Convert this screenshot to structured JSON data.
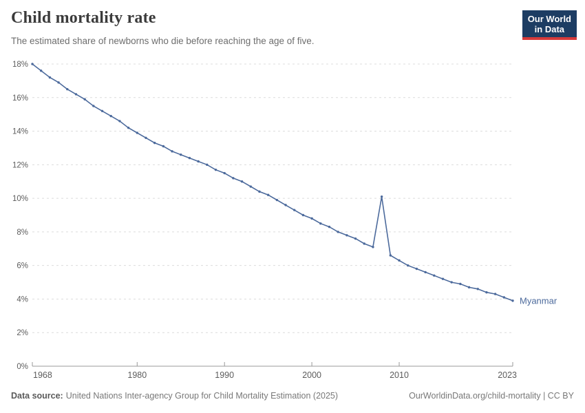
{
  "header": {
    "title": "Child mortality rate",
    "subtitle": "The estimated share of newborns who die before reaching the age of five."
  },
  "logo": {
    "line1": "Our World",
    "line2": "in Data",
    "bg_color": "#1d3d63",
    "accent_color": "#d73a3a"
  },
  "chart_data": {
    "type": "line",
    "title": "Child mortality rate",
    "subtitle": "The estimated share of newborns who die before reaching the age of five.",
    "entity_label": "Myanmar",
    "years": [
      1968,
      1969,
      1970,
      1971,
      1972,
      1973,
      1974,
      1975,
      1976,
      1977,
      1978,
      1979,
      1980,
      1981,
      1982,
      1983,
      1984,
      1985,
      1986,
      1987,
      1988,
      1989,
      1990,
      1991,
      1992,
      1993,
      1994,
      1995,
      1996,
      1997,
      1998,
      1999,
      2000,
      2001,
      2002,
      2003,
      2004,
      2005,
      2006,
      2007,
      2008,
      2009,
      2010,
      2011,
      2012,
      2013,
      2014,
      2015,
      2016,
      2017,
      2018,
      2019,
      2020,
      2021,
      2022,
      2023
    ],
    "values": [
      18.0,
      17.6,
      17.2,
      16.9,
      16.5,
      16.2,
      15.9,
      15.5,
      15.2,
      14.9,
      14.6,
      14.2,
      13.9,
      13.6,
      13.3,
      13.1,
      12.8,
      12.6,
      12.4,
      12.2,
      12.0,
      11.7,
      11.5,
      11.2,
      11.0,
      10.7,
      10.4,
      10.2,
      9.9,
      9.6,
      9.3,
      9.0,
      8.8,
      8.5,
      8.3,
      8.0,
      7.8,
      7.6,
      7.3,
      7.1,
      10.1,
      6.6,
      6.3,
      6.0,
      5.8,
      5.6,
      5.4,
      5.2,
      5.0,
      4.9,
      4.7,
      4.6,
      4.4,
      4.3,
      4.1,
      3.9
    ],
    "xlim": [
      1968,
      2023
    ],
    "ylim": [
      0,
      18
    ],
    "xticks": [
      1968,
      1980,
      1990,
      2000,
      2010,
      2023
    ],
    "yticks": [
      0,
      2,
      4,
      6,
      8,
      10,
      12,
      14,
      16,
      18
    ],
    "ytick_suffix": "%",
    "grid": true,
    "legend_position": "end-of-line",
    "line_color": "#4c6a9c",
    "marker_radius": 1.7,
    "grid_color": "#dcdcdc",
    "axis_color": "#999999",
    "tick_label_color": "#5c5c5c"
  },
  "footer": {
    "source_label": "Data source:",
    "source_text": "United Nations Inter-agency Group for Child Mortality Estimation (2025)",
    "link_text": "OurWorldinData.org/child-mortality | CC BY"
  }
}
